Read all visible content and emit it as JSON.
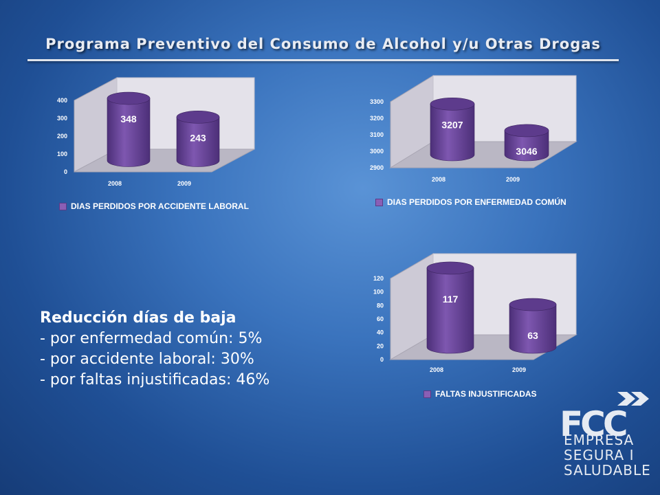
{
  "title": "Programa Preventivo del Consumo de Alcohol y/u Otras Drogas",
  "text_block": {
    "heading": "Reducción días de baja",
    "lines": [
      "- por enfermedad común: 5%",
      "- por accidente laboral: 30%",
      "- por faltas injustificadas: 46%"
    ]
  },
  "logo": {
    "brand": "FCC",
    "tagline": [
      "EMPRESA",
      "SEGURA I",
      "SALUDABLE"
    ]
  },
  "colors": {
    "bar": "#7e57b0",
    "bar_dark": "#4c2f78",
    "bar_top": "#5d3b8c",
    "plot_back": "#e4e2ea",
    "plot_floor": "#bab7c4"
  },
  "chart_data": [
    {
      "type": "bar",
      "style": "3d-cylinder",
      "categories": [
        "2008",
        "2009"
      ],
      "series": [
        {
          "name": "DIAS PERDIDOS POR ACCIDENTE LABORAL",
          "values": [
            348,
            243
          ]
        }
      ],
      "ylim": [
        0,
        400
      ],
      "yticks": [
        0,
        100,
        200,
        300,
        400
      ],
      "data_labels": [
        "348",
        "243"
      ],
      "legend_position": "bottom"
    },
    {
      "type": "bar",
      "style": "3d-cylinder",
      "categories": [
        "2008",
        "2009"
      ],
      "series": [
        {
          "name": "DIAS PERDIDOS POR ENFERMEDAD COMÚN",
          "values": [
            3207,
            3046
          ]
        }
      ],
      "ylim": [
        2900,
        3300
      ],
      "yticks": [
        2900,
        3000,
        3100,
        3200,
        3300
      ],
      "data_labels": [
        "3207",
        "3046"
      ],
      "legend_position": "bottom"
    },
    {
      "type": "bar",
      "style": "3d-cylinder",
      "categories": [
        "2008",
        "2009"
      ],
      "series": [
        {
          "name": "FALTAS INJUSTIFICADAS",
          "values": [
            117,
            63
          ]
        }
      ],
      "ylim": [
        0,
        120
      ],
      "yticks": [
        0,
        20,
        40,
        60,
        80,
        100,
        120
      ],
      "data_labels": [
        "117",
        "63"
      ],
      "legend_position": "bottom"
    }
  ]
}
